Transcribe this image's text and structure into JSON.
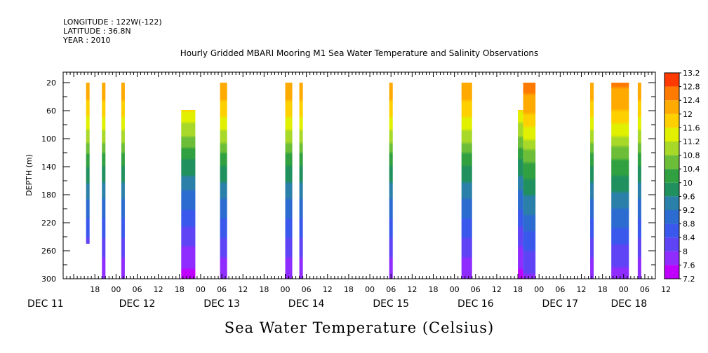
{
  "meta": {
    "longitude": "LONGITUDE : 122W(-122)",
    "latitude": "LATITUDE : 36.8N",
    "year": "YEAR : 2010"
  },
  "chart_data": {
    "type": "heatmap",
    "title": "Hourly Gridded MBARI Mooring M1 Sea Water Temperature and Salinity Observations",
    "xlabel": "Sea Water Temperature (Celsius)",
    "ylabel": "DEPTH (m)",
    "x_axis": {
      "units": "hours since DEC 11 00:00",
      "range": [
        9,
        177
      ],
      "hour_ticks": [
        {
          "h": 18,
          "label": "18"
        },
        {
          "h": 24,
          "label": "00"
        },
        {
          "h": 30,
          "label": "06"
        },
        {
          "h": 36,
          "label": "12"
        },
        {
          "h": 42,
          "label": "18"
        },
        {
          "h": 48,
          "label": "00"
        },
        {
          "h": 54,
          "label": "06"
        },
        {
          "h": 60,
          "label": "12"
        },
        {
          "h": 66,
          "label": "18"
        },
        {
          "h": 72,
          "label": "00"
        },
        {
          "h": 78,
          "label": "06"
        },
        {
          "h": 84,
          "label": "12"
        },
        {
          "h": 90,
          "label": "18"
        },
        {
          "h": 96,
          "label": "00"
        },
        {
          "h": 102,
          "label": "06"
        },
        {
          "h": 108,
          "label": "12"
        },
        {
          "h": 114,
          "label": "18"
        },
        {
          "h": 120,
          "label": "00"
        },
        {
          "h": 126,
          "label": "06"
        },
        {
          "h": 132,
          "label": "12"
        },
        {
          "h": 138,
          "label": "18"
        },
        {
          "h": 144,
          "label": "00"
        },
        {
          "h": 150,
          "label": "06"
        },
        {
          "h": 156,
          "label": "12"
        },
        {
          "h": 162,
          "label": "18"
        },
        {
          "h": 168,
          "label": "00"
        },
        {
          "h": 174,
          "label": "06"
        },
        {
          "h": 180,
          "label": "12"
        }
      ],
      "day_labels": [
        {
          "h": 4,
          "label": "DEC 11"
        },
        {
          "h": 30,
          "label": "DEC 12"
        },
        {
          "h": 54,
          "label": "DEC 13"
        },
        {
          "h": 78,
          "label": "DEC 14"
        },
        {
          "h": 102,
          "label": "DEC 15"
        },
        {
          "h": 126,
          "label": "DEC 16"
        },
        {
          "h": 150,
          "label": "DEC 17"
        },
        {
          "h": 169.5,
          "label": "DEC 18"
        }
      ]
    },
    "y_axis": {
      "range": [
        5,
        300
      ],
      "inverted": true,
      "ticks": [
        20,
        60,
        100,
        140,
        180,
        220,
        260,
        300
      ],
      "minor_step": 20
    },
    "colorbar": {
      "levels": [
        7.2,
        7.6,
        8,
        8.4,
        8.8,
        9.2,
        9.6,
        10,
        10.4,
        10.8,
        11.2,
        11.6,
        12,
        12.4,
        12.8,
        13.2
      ],
      "colors": [
        "#ffffff",
        "#c000ff",
        "#8f2cff",
        "#5e44f4",
        "#3a58ec",
        "#2c6cd0",
        "#2a80a8",
        "#20905e",
        "#30a040",
        "#6cbe38",
        "#a8d828",
        "#e0f000",
        "#ffd000",
        "#ffaa00",
        "#ff7a00",
        "#ff3a00",
        "#e20000",
        "#a00000"
      ]
    },
    "profile_model": {
      "note": "temperature vs depth, values in deg C",
      "depths": [
        20,
        60,
        100,
        140,
        180,
        220,
        260,
        300
      ],
      "temps": [
        12.3,
        11.8,
        10.9,
        10.0,
        9.3,
        8.7,
        8.1,
        7.6
      ]
    },
    "segments": [
      {
        "h0": 15.5,
        "h1": 16.5,
        "d0": 20,
        "d1": 250
      },
      {
        "h0": 20.0,
        "h1": 21.0,
        "d0": 20,
        "d1": 300
      },
      {
        "h0": 25.5,
        "h1": 26.5,
        "d0": 20,
        "d1": 300
      },
      {
        "h0": 42.5,
        "h1": 46.5,
        "d0": 59,
        "d1": 300,
        "shift": -0.2
      },
      {
        "h0": 53.5,
        "h1": 55.5,
        "d0": 20,
        "d1": 300
      },
      {
        "h0": 72.0,
        "h1": 74.0,
        "d0": 20,
        "d1": 300
      },
      {
        "h0": 76.0,
        "h1": 77.0,
        "d0": 20,
        "d1": 300
      },
      {
        "h0": 101.5,
        "h1": 102.5,
        "d0": 20,
        "d1": 300
      },
      {
        "h0": 122.0,
        "h1": 125.0,
        "d0": 20,
        "d1": 300
      },
      {
        "h0": 138.0,
        "h1": 139.5,
        "d0": 59,
        "d1": 300,
        "shift": -0.2
      },
      {
        "h0": 139.5,
        "h1": 143.0,
        "d0": 20,
        "d1": 300,
        "shift": 0.3
      },
      {
        "h0": 158.5,
        "h1": 159.5,
        "d0": 20,
        "d1": 300
      },
      {
        "h0": 164.5,
        "h1": 169.5,
        "d0": 20,
        "d1": 300,
        "shift": 0.2
      },
      {
        "h0": 172.0,
        "h1": 173.0,
        "d0": 20,
        "d1": 300
      }
    ]
  }
}
